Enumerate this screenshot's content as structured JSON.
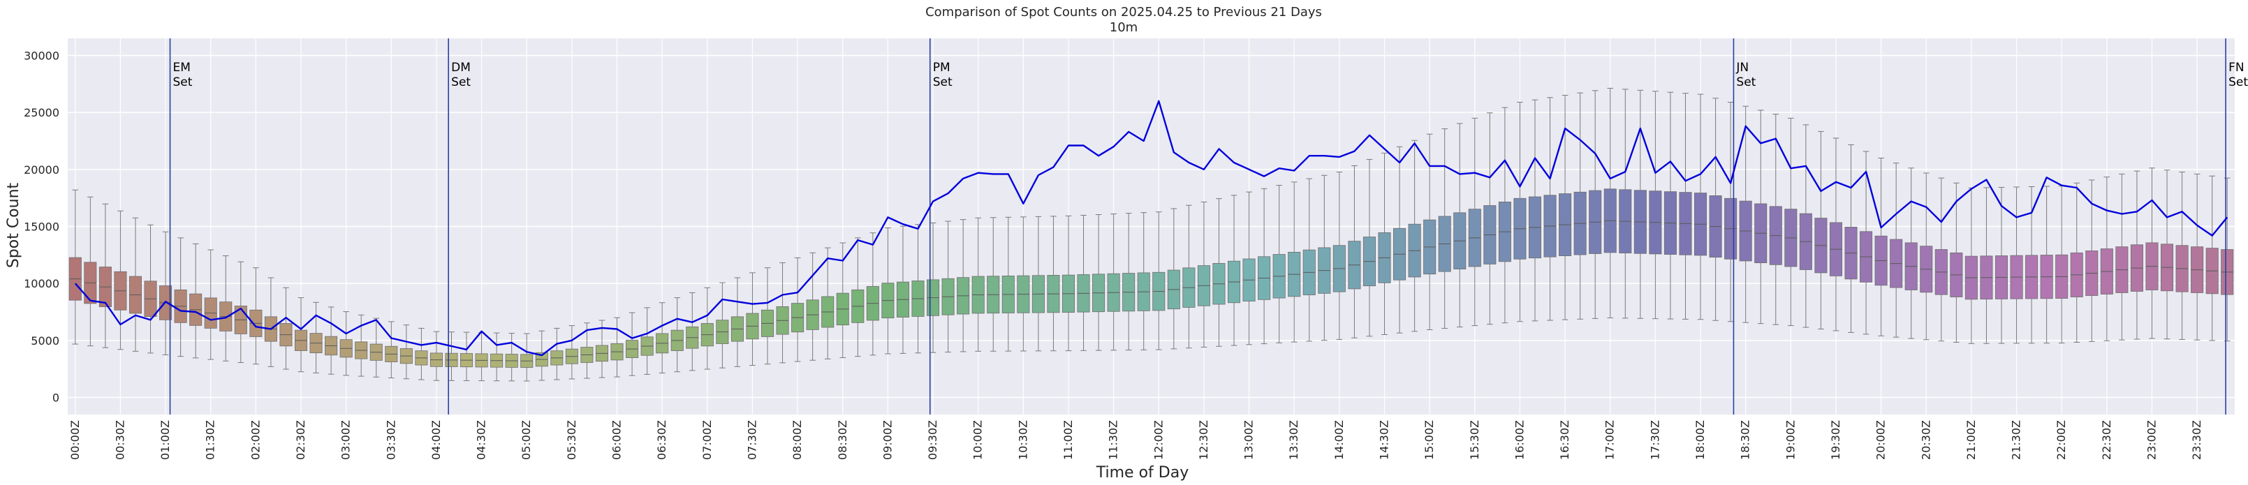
{
  "chart_data": {
    "type": "box",
    "title": "Comparison of Spot Counts on 2025.04.25 to Previous 21 Days",
    "subtitle": "10m",
    "xlabel": "Time of Day",
    "ylabel": "Spot Count",
    "ylim": [
      -1500,
      31500
    ],
    "y_ticks": [
      0,
      5000,
      10000,
      15000,
      20000,
      25000,
      30000
    ],
    "bins_per_day": 144,
    "bin_minutes": 10,
    "x_tick_every_bins": 3,
    "x_tick_labels": [
      "00:00Z",
      "00:30Z",
      "01:00Z",
      "01:30Z",
      "02:00Z",
      "02:30Z",
      "03:00Z",
      "03:30Z",
      "04:00Z",
      "04:30Z",
      "05:00Z",
      "05:30Z",
      "06:00Z",
      "06:30Z",
      "07:00Z",
      "07:30Z",
      "08:00Z",
      "08:30Z",
      "09:00Z",
      "09:30Z",
      "10:00Z",
      "10:30Z",
      "11:00Z",
      "11:30Z",
      "12:00Z",
      "12:30Z",
      "13:00Z",
      "13:30Z",
      "14:00Z",
      "14:30Z",
      "15:00Z",
      "15:30Z",
      "16:00Z",
      "16:30Z",
      "17:00Z",
      "17:30Z",
      "18:00Z",
      "18:30Z",
      "19:00Z",
      "19:30Z",
      "20:00Z",
      "20:30Z",
      "21:00Z",
      "21:30Z",
      "22:00Z",
      "22:30Z",
      "23:00Z",
      "23:30Z"
    ],
    "box_median_anchors": [
      [
        0,
        10400
      ],
      [
        6,
        8300
      ],
      [
        12,
        6500
      ],
      [
        15,
        5000
      ],
      [
        18,
        4300
      ],
      [
        24,
        3300
      ],
      [
        30,
        3200
      ],
      [
        36,
        4000
      ],
      [
        42,
        5500
      ],
      [
        48,
        7000
      ],
      [
        54,
        8500
      ],
      [
        60,
        9000
      ],
      [
        66,
        9100
      ],
      [
        72,
        9300
      ],
      [
        78,
        10300
      ],
      [
        84,
        11300
      ],
      [
        90,
        13200
      ],
      [
        96,
        14800
      ],
      [
        102,
        15500
      ],
      [
        108,
        15200
      ],
      [
        114,
        14000
      ],
      [
        120,
        12000
      ],
      [
        126,
        10500
      ],
      [
        132,
        10600
      ],
      [
        138,
        11500
      ],
      [
        143,
        11000
      ]
    ],
    "box_q1_ratio": 0.82,
    "box_q3_ratio": 1.18,
    "whisker_low_ratio": 0.45,
    "whisker_high_ratio": 1.75,
    "series": [
      {
        "name": "2025.04.25",
        "color": "#0000dd",
        "anchors": [
          [
            0,
            10000
          ],
          [
            1,
            8500
          ],
          [
            2,
            8300
          ],
          [
            3,
            6400
          ],
          [
            4,
            7200
          ],
          [
            5,
            6800
          ],
          [
            6,
            8400
          ],
          [
            7,
            7600
          ],
          [
            8,
            7500
          ],
          [
            9,
            6800
          ],
          [
            10,
            7000
          ],
          [
            11,
            7800
          ],
          [
            12,
            6200
          ],
          [
            13,
            6000
          ],
          [
            14,
            7000
          ],
          [
            15,
            6000
          ],
          [
            16,
            7200
          ],
          [
            17,
            6500
          ],
          [
            18,
            5600
          ],
          [
            19,
            6300
          ],
          [
            20,
            6800
          ],
          [
            21,
            5200
          ],
          [
            22,
            4900
          ],
          [
            23,
            4600
          ],
          [
            24,
            4800
          ],
          [
            25,
            4500
          ],
          [
            26,
            4200
          ],
          [
            27,
            5800
          ],
          [
            28,
            4600
          ],
          [
            29,
            4800
          ],
          [
            30,
            4000
          ],
          [
            31,
            3700
          ],
          [
            32,
            4700
          ],
          [
            33,
            5000
          ],
          [
            34,
            5900
          ],
          [
            35,
            6100
          ],
          [
            36,
            6000
          ],
          [
            37,
            5200
          ],
          [
            38,
            5600
          ],
          [
            39,
            6300
          ],
          [
            40,
            6900
          ],
          [
            41,
            6600
          ],
          [
            42,
            7200
          ],
          [
            43,
            8600
          ],
          [
            44,
            8400
          ],
          [
            45,
            8200
          ],
          [
            46,
            8300
          ],
          [
            47,
            9000
          ],
          [
            48,
            9200
          ],
          [
            49,
            10700
          ],
          [
            50,
            12200
          ],
          [
            51,
            12000
          ],
          [
            52,
            13800
          ],
          [
            53,
            13400
          ],
          [
            54,
            15800
          ],
          [
            55,
            15200
          ],
          [
            56,
            14800
          ],
          [
            57,
            17200
          ],
          [
            58,
            17900
          ],
          [
            59,
            19200
          ],
          [
            60,
            19700
          ],
          [
            61,
            19600
          ],
          [
            62,
            19600
          ],
          [
            63,
            17000
          ],
          [
            64,
            19500
          ],
          [
            65,
            20200
          ],
          [
            66,
            22100
          ],
          [
            67,
            22100
          ],
          [
            68,
            21200
          ],
          [
            69,
            22000
          ],
          [
            70,
            23300
          ],
          [
            71,
            22500
          ],
          [
            72,
            26000
          ],
          [
            73,
            21500
          ],
          [
            74,
            20600
          ],
          [
            75,
            20000
          ],
          [
            76,
            21800
          ],
          [
            77,
            20600
          ],
          [
            78,
            20000
          ],
          [
            79,
            19400
          ],
          [
            80,
            20100
          ],
          [
            81,
            19900
          ],
          [
            82,
            21200
          ],
          [
            83,
            21200
          ],
          [
            84,
            21100
          ],
          [
            85,
            21600
          ],
          [
            86,
            23000
          ],
          [
            87,
            21800
          ],
          [
            88,
            20600
          ],
          [
            89,
            22300
          ],
          [
            90,
            20300
          ],
          [
            91,
            20300
          ],
          [
            92,
            19600
          ],
          [
            93,
            19700
          ],
          [
            94,
            19300
          ],
          [
            95,
            20800
          ],
          [
            96,
            18500
          ],
          [
            97,
            21000
          ],
          [
            98,
            19200
          ],
          [
            99,
            23600
          ],
          [
            100,
            22600
          ],
          [
            101,
            21400
          ],
          [
            102,
            19200
          ],
          [
            103,
            19800
          ],
          [
            104,
            23600
          ],
          [
            105,
            19700
          ],
          [
            106,
            20700
          ],
          [
            107,
            19000
          ],
          [
            108,
            19600
          ],
          [
            109,
            21100
          ],
          [
            110,
            18800
          ],
          [
            111,
            23800
          ],
          [
            112,
            22300
          ],
          [
            113,
            22700
          ],
          [
            114,
            20100
          ],
          [
            115,
            20300
          ],
          [
            116,
            18100
          ],
          [
            117,
            18900
          ],
          [
            118,
            18400
          ],
          [
            119,
            19800
          ],
          [
            120,
            14900
          ],
          [
            121,
            16100
          ],
          [
            122,
            17200
          ],
          [
            123,
            16700
          ],
          [
            124,
            15400
          ],
          [
            125,
            17200
          ],
          [
            126,
            18300
          ],
          [
            127,
            19100
          ],
          [
            128,
            16800
          ],
          [
            129,
            15800
          ],
          [
            130,
            16200
          ],
          [
            131,
            19300
          ],
          [
            132,
            18600
          ],
          [
            133,
            18400
          ],
          [
            134,
            17000
          ],
          [
            135,
            16400
          ],
          [
            136,
            16100
          ],
          [
            137,
            16300
          ],
          [
            138,
            17300
          ],
          [
            139,
            15800
          ],
          [
            140,
            16300
          ],
          [
            141,
            15100
          ],
          [
            142,
            14200
          ],
          [
            143,
            15800
          ]
        ]
      }
    ],
    "vlines": [
      {
        "bin": 6.3,
        "label1": "EM",
        "label2": "Set",
        "color": "#2a3fa0"
      },
      {
        "bin": 24.8,
        "label1": "DM",
        "label2": "Set",
        "color": "#2a3fa0"
      },
      {
        "bin": 56.8,
        "label1": "PM",
        "label2": "Set",
        "color": "#2a3fa0"
      },
      {
        "bin": 110.2,
        "label1": "JN",
        "label2": "Set",
        "color": "#2a3fa0"
      },
      {
        "bin": 142.9,
        "label1": "FN",
        "label2": "Set",
        "color": "#2a3fa0"
      }
    ],
    "grid": true,
    "background": "#eaeaf2"
  }
}
